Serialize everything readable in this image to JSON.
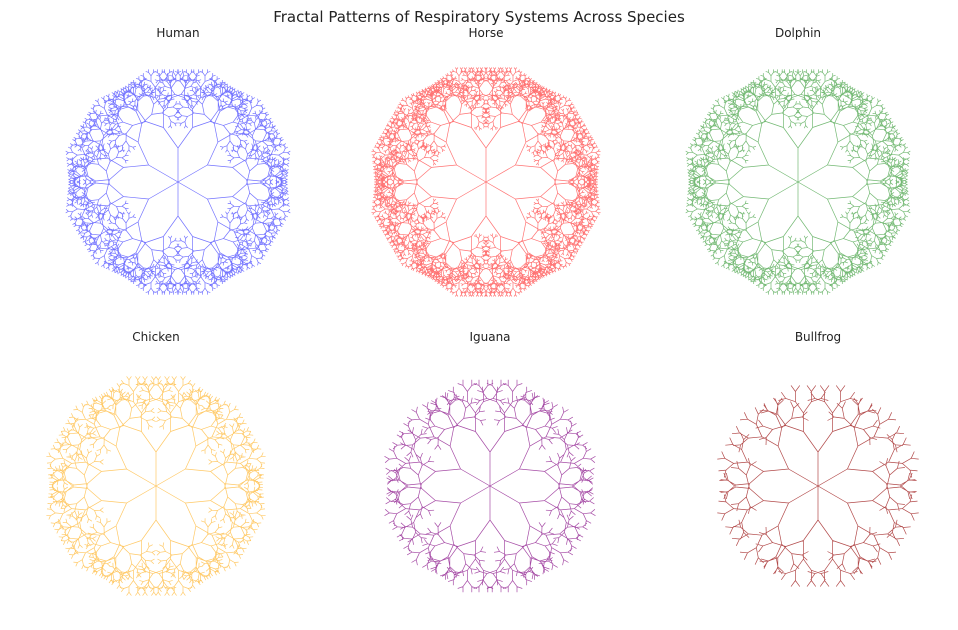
{
  "chart_data": [
    {
      "type": "other",
      "title": "Fractal Patterns of Respiratory Systems Across Species",
      "panels": [
        {
          "name": "Human",
          "color": "#0000ff",
          "depth": 9,
          "opacity": 0.55
        },
        {
          "name": "Horse",
          "color": "#ff0000",
          "depth": 10,
          "opacity": 0.55
        },
        {
          "name": "Dolphin",
          "color": "#008000",
          "depth": 9,
          "opacity": 0.55
        },
        {
          "name": "Chicken",
          "color": "#ffa500",
          "depth": 8,
          "opacity": 0.6
        },
        {
          "name": "Iguana",
          "color": "#800080",
          "depth": 7,
          "opacity": 0.7
        },
        {
          "name": "Bullfrog",
          "color": "#a52a2a",
          "depth": 6,
          "opacity": 0.85
        }
      ]
    }
  ]
}
